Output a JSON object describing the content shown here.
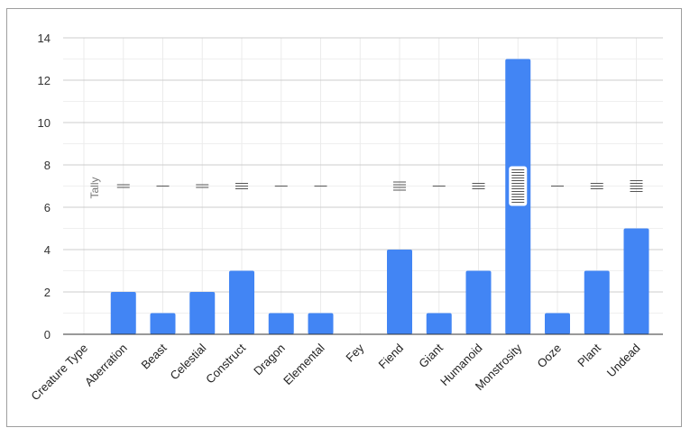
{
  "chart_data": {
    "type": "bar",
    "categories": [
      "Creature Type",
      "Aberration",
      "Beast",
      "Celestial",
      "Construct",
      "Dragon",
      "Elemental",
      "Fey",
      "Fiend",
      "Giant",
      "Humanoid",
      "Monstrosity",
      "Ooze",
      "Plant",
      "Undead"
    ],
    "values": [
      0,
      2,
      1,
      2,
      3,
      1,
      1,
      0,
      4,
      1,
      3,
      13,
      1,
      3,
      5
    ],
    "annotation_label": "Tally",
    "ylim": [
      0,
      14
    ],
    "yticks": [
      "0",
      "2",
      "4",
      "6",
      "8",
      "10",
      "12",
      "14"
    ],
    "grid": true,
    "bar_color": "#4285f4",
    "legend": "none"
  }
}
